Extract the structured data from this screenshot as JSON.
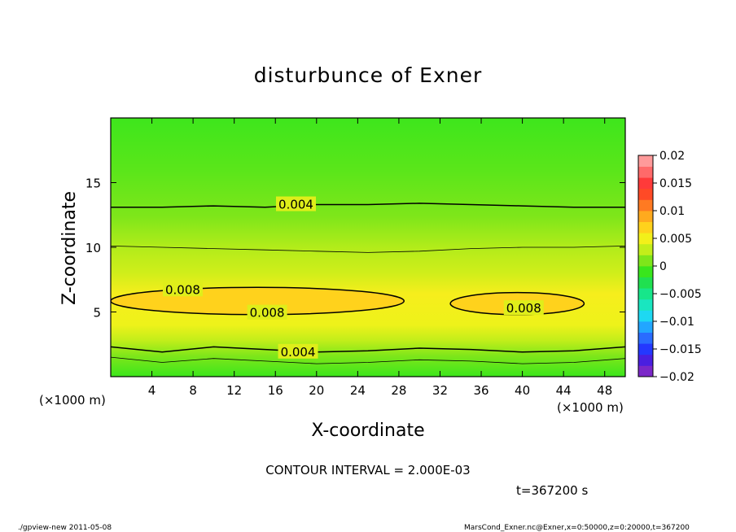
{
  "chart_data": {
    "type": "heatmap",
    "title": "disturbunce of Exner",
    "xlabel": "X-coordinate",
    "ylabel": "Z-coordinate",
    "x_unit_left": "(×1000 m)",
    "x_unit_right": "(×1000 m)",
    "xlim": [
      0,
      50
    ],
    "ylim": [
      0,
      20
    ],
    "x_ticks": [
      4,
      8,
      12,
      16,
      20,
      24,
      28,
      32,
      36,
      40,
      44,
      48
    ],
    "x_tick_labels": [
      "4",
      "8",
      "12",
      "16",
      "20",
      "24",
      "28",
      "32",
      "36",
      "40",
      "44",
      "48"
    ],
    "y_ticks": [
      5,
      10,
      15
    ],
    "y_tick_labels": [
      "5",
      "10",
      "15"
    ],
    "colorbar": {
      "range": [
        -0.02,
        0.02
      ],
      "tick_values": [
        0.02,
        0.015,
        0.01,
        0.005,
        0,
        -0.005,
        -0.01,
        -0.015,
        -0.02
      ],
      "tick_labels": [
        "0.02",
        "0.015",
        "0.01",
        "0.005",
        "0",
        "−0.005",
        "−0.01",
        "−0.015",
        "−0.02"
      ],
      "colors_bottom_to_top": [
        "#7b28c8",
        "#4a1fe0",
        "#2438ff",
        "#2a6cff",
        "#22a6ff",
        "#1ed8f2",
        "#19e6c0",
        "#17e68a",
        "#20e050",
        "#39e61c",
        "#7ee61a",
        "#c2ee1a",
        "#f2f01a",
        "#ffd21c",
        "#ffaa1e",
        "#ff7a22",
        "#ff4a26",
        "#ff3a3a",
        "#ff6a6a",
        "#ff9a9a"
      ]
    },
    "contour_interval_text": "CONTOUR INTERVAL = 2.000E-03",
    "contours": [
      {
        "level": 0.004,
        "label": "0.004",
        "z_profile": [
          13.1,
          13.1,
          13.2,
          13.1,
          13.3,
          13.3,
          13.4,
          13.3,
          13.2,
          13.1,
          13.1
        ]
      },
      {
        "level": 0.002,
        "z_profile": [
          10.1,
          10.0,
          9.9,
          9.8,
          9.7,
          9.6,
          9.7,
          9.9,
          10.0,
          10.0,
          10.1
        ]
      },
      {
        "level": 0.008,
        "label": "0.008",
        "region": "left",
        "x_range": [
          0,
          28.5
        ],
        "z_range": [
          4.8,
          6.9
        ]
      },
      {
        "level": 0.008,
        "label": "0.008",
        "region": "right",
        "x_range": [
          33,
          46
        ],
        "z_range": [
          4.8,
          6.5
        ]
      },
      {
        "level": 0.004,
        "label": "0.004",
        "z_profile": [
          2.3,
          1.9,
          2.3,
          2.1,
          1.9,
          2.0,
          2.2,
          2.1,
          1.9,
          2.0,
          2.3
        ]
      },
      {
        "level": 0.002,
        "z_profile": [
          1.5,
          1.1,
          1.4,
          1.2,
          1.0,
          1.1,
          1.3,
          1.2,
          1.0,
          1.1,
          1.4
        ]
      }
    ]
  },
  "annotations": {
    "time": "t=367200 s",
    "footer_left": "./gpview-new  2011-05-08",
    "footer_right": "MarsCond_Exner.nc@Exner,x=0:50000,z=0:20000,t=367200"
  }
}
